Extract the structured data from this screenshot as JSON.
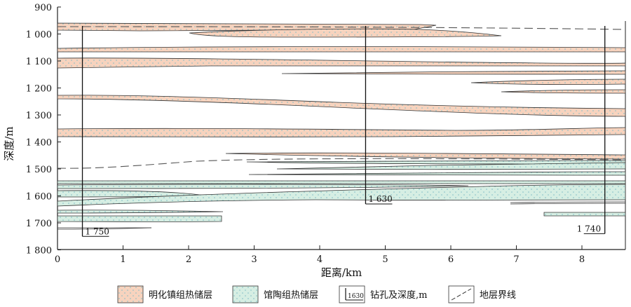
{
  "y_axis": {
    "title": "深度/m",
    "ticks": [
      "900",
      "1 000",
      "1 100",
      "1 200",
      "1 300",
      "1 400",
      "1 500",
      "1 600",
      "1 700",
      "1 800"
    ]
  },
  "x_axis": {
    "title": "距离/km",
    "ticks": [
      "0",
      "1",
      "2",
      "3",
      "4",
      "5",
      "6",
      "7",
      "8"
    ]
  },
  "wells": [
    {
      "label": "1 750",
      "x_km": 0.38,
      "depth_m": 1750
    },
    {
      "label": "1 630",
      "x_km": 4.7,
      "depth_m": 1630
    },
    {
      "label": "1 740",
      "x_km": 8.35,
      "depth_m": 1740
    }
  ],
  "legend": {
    "minghuazhen": "明化镇组热储层",
    "guantao": "馆陶组热储层",
    "well_symbol": "1630",
    "well": "钻孔及深度,m",
    "boundary": "地层界线"
  },
  "colors": {
    "minghuazhen_fill": "#f7d3be",
    "guantao_fill": "#d6eee3",
    "stipple": "#7fbcc6",
    "outline": "#333333"
  }
}
